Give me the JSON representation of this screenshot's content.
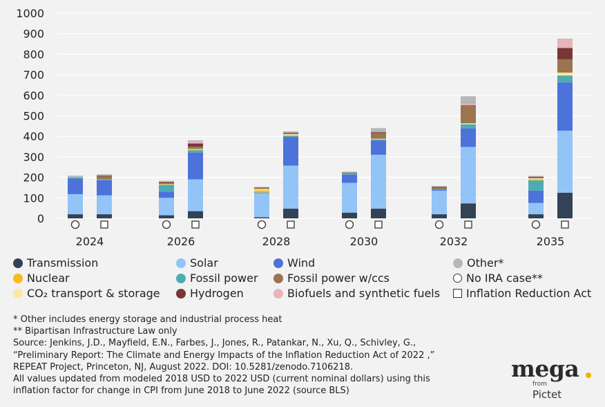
{
  "chart_data": {
    "type": "bar",
    "stacked": true,
    "y_ticks": [
      0,
      100,
      200,
      300,
      400,
      500,
      600,
      700,
      800,
      900,
      1000
    ],
    "ylim": [
      0,
      1000
    ],
    "groups": [
      "2024",
      "2026",
      "2028",
      "2030",
      "2032",
      "2035"
    ],
    "bar_markers": [
      "circle",
      "square"
    ],
    "series_order": [
      "Transmission",
      "Solar",
      "Wind",
      "Fossil power",
      "Nuclear",
      "CO2 transport & storage",
      "Fossil power w/ccs",
      "Hydrogen",
      "Biofuels and synthetic fuels",
      "Other*"
    ],
    "series_colors": {
      "Transmission": "#344256",
      "Solar": "#92c4f7",
      "Wind": "#4d72d9",
      "Fossil power": "#4cacb4",
      "Nuclear": "#f5bd1c",
      "CO2 transport & storage": "#fde7a6",
      "Fossil power w/ccs": "#9a7550",
      "Hydrogen": "#7a3537",
      "Biofuels and synthetic fuels": "#e8b4b8",
      "Other*": "#b7b7b7"
    },
    "bars": [
      {
        "group": "2024",
        "case": "No IRA case**",
        "values": {
          "Transmission": 20,
          "Solar": 98,
          "Wind": 76,
          "Fossil power": 5,
          "Nuclear": 0,
          "CO2 transport & storage": 0,
          "Fossil power w/ccs": 0,
          "Hydrogen": 0,
          "Biofuels and synthetic fuels": 0,
          "Other*": 9
        }
      },
      {
        "group": "2024",
        "case": "Inflation Reduction Act",
        "values": {
          "Transmission": 20,
          "Solar": 92,
          "Wind": 74,
          "Fossil power": 5,
          "Nuclear": 0,
          "CO2 transport & storage": 0,
          "Fossil power w/ccs": 15,
          "Hydrogen": 3,
          "Biofuels and synthetic fuels": 3,
          "Other*": 3
        }
      },
      {
        "group": "2026",
        "case": "No IRA case**",
        "values": {
          "Transmission": 15,
          "Solar": 85,
          "Wind": 30,
          "Fossil power": 33,
          "Nuclear": 2,
          "CO2 transport & storage": 2,
          "Fossil power w/ccs": 5,
          "Hydrogen": 5,
          "Biofuels and synthetic fuels": 3,
          "Other*": 3
        }
      },
      {
        "group": "2026",
        "case": "Inflation Reduction Act",
        "values": {
          "Transmission": 35,
          "Solar": 155,
          "Wind": 130,
          "Fossil power": 12,
          "Nuclear": 3,
          "CO2 transport & storage": 3,
          "Fossil power w/ccs": 12,
          "Hydrogen": 15,
          "Biofuels and synthetic fuels": 8,
          "Other*": 7
        }
      },
      {
        "group": "2028",
        "case": "No IRA case**",
        "values": {
          "Transmission": 5,
          "Solar": 118,
          "Wind": 2,
          "Fossil power": 2,
          "Nuclear": 10,
          "CO2 transport & storage": 6,
          "Fossil power w/ccs": 5,
          "Hydrogen": 2,
          "Biofuels and synthetic fuels": 0,
          "Other*": 3
        }
      },
      {
        "group": "2028",
        "case": "Inflation Reduction Act",
        "values": {
          "Transmission": 47,
          "Solar": 210,
          "Wind": 140,
          "Fossil power": 5,
          "Nuclear": 3,
          "CO2 transport & storage": 5,
          "Fossil power w/ccs": 5,
          "Hydrogen": 3,
          "Biofuels and synthetic fuels": 2,
          "Other*": 4
        }
      },
      {
        "group": "2030",
        "case": "No IRA case**",
        "values": {
          "Transmission": 28,
          "Solar": 145,
          "Wind": 40,
          "Fossil power": 5,
          "Nuclear": 0,
          "CO2 transport & storage": 0,
          "Fossil power w/ccs": 5,
          "Hydrogen": 0,
          "Biofuels and synthetic fuels": 0,
          "Other*": 5
        }
      },
      {
        "group": "2030",
        "case": "Inflation Reduction Act",
        "values": {
          "Transmission": 47,
          "Solar": 263,
          "Wind": 70,
          "Fossil power": 5,
          "Nuclear": 0,
          "CO2 transport & storage": 3,
          "Fossil power w/ccs": 27,
          "Hydrogen": 5,
          "Biofuels and synthetic fuels": 0,
          "Other*": 20
        }
      },
      {
        "group": "2032",
        "case": "No IRA case**",
        "values": {
          "Transmission": 20,
          "Solar": 115,
          "Wind": 5,
          "Fossil power": 3,
          "Nuclear": 0,
          "CO2 transport & storage": 0,
          "Fossil power w/ccs": 7,
          "Hydrogen": 3,
          "Biofuels and synthetic fuels": 0,
          "Other*": 5
        }
      },
      {
        "group": "2032",
        "case": "Inflation Reduction Act",
        "values": {
          "Transmission": 73,
          "Solar": 275,
          "Wind": 90,
          "Fossil power": 20,
          "Nuclear": 0,
          "CO2 transport & storage": 5,
          "Fossil power w/ccs": 85,
          "Hydrogen": 3,
          "Biofuels and synthetic fuels": 7,
          "Other*": 37
        }
      },
      {
        "group": "2035",
        "case": "No IRA case**",
        "values": {
          "Transmission": 20,
          "Solar": 55,
          "Wind": 60,
          "Fossil power": 50,
          "Nuclear": 5,
          "CO2 transport & storage": 5,
          "Fossil power w/ccs": 5,
          "Hydrogen": 3,
          "Biofuels and synthetic fuels": 0,
          "Other*": 4
        }
      },
      {
        "group": "2035",
        "case": "Inflation Reduction Act",
        "values": {
          "Transmission": 125,
          "Solar": 302,
          "Wind": 235,
          "Fossil power": 33,
          "Nuclear": 3,
          "CO2 transport & storage": 12,
          "Fossil power w/ccs": 65,
          "Hydrogen": 55,
          "Biofuels and synthetic fuels": 40,
          "Other*": 5
        }
      }
    ]
  },
  "legend": {
    "transmission": "Transmission",
    "solar": "Solar",
    "wind": "Wind",
    "other": "Other*",
    "nuclear": "Nuclear",
    "fossil_power": "Fossil power",
    "fossil_ccs": "Fossil power w/ccs",
    "no_ira": "No IRA case**",
    "co2": "CO₂ transport & storage",
    "hydrogen": "Hydrogen",
    "biofuels": "Biofuels and synthetic fuels",
    "ira": "Inflation Reduction Act"
  },
  "notes": [
    "* Other includes energy storage and industrial process heat",
    "** Bipartisan Infrastructure Law only",
    "Source: Jenkins, J.D., Mayfield, E.N., Farbes, J., Jones, R., Patankar, N., Xu, Q., Schivley, G.,",
    "“Preliminary Report: The Climate and Energy Impacts of the Inflation Reduction Act of 2022 ,”",
    "REPEAT Project, Princeton, NJ, August 2022. DOI: 10.5281/zenodo.7106218.",
    "All values updated from modeled 2018 USD to 2022 USD (current nominal dollars) using this",
    "inflation factor for change in CPI from June 2018 to June 2022 (source BLS)"
  ],
  "logo": {
    "main": "mega",
    "from": "from",
    "sub": "Pictet"
  }
}
